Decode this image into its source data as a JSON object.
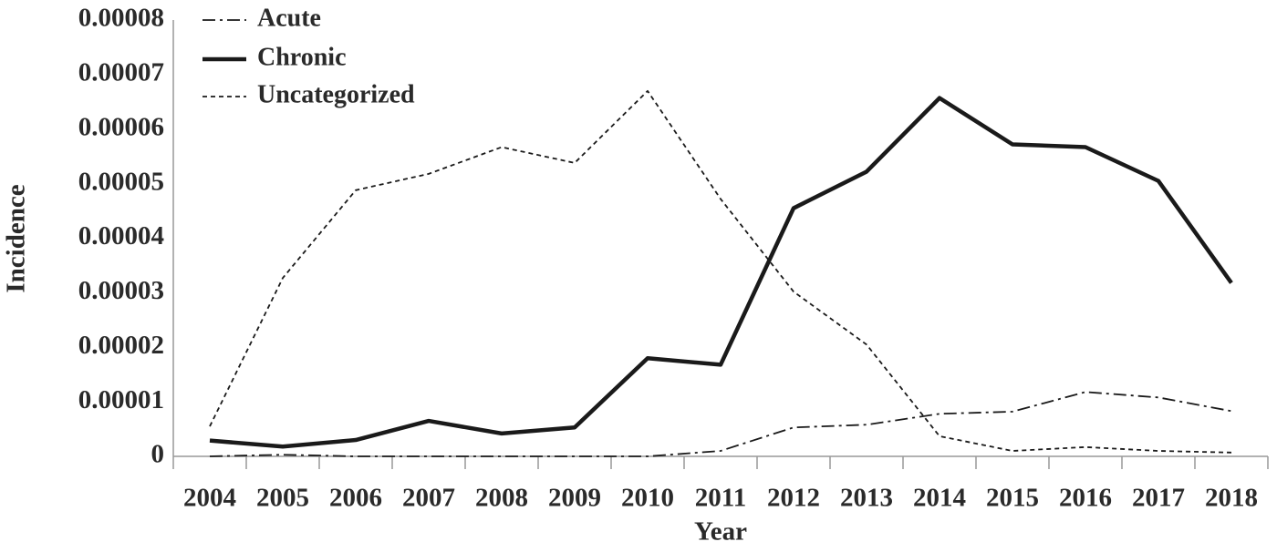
{
  "chart_data": {
    "type": "line",
    "x_label": "Year",
    "y_label": "Incidence",
    "categories": [
      "2004",
      "2005",
      "2006",
      "2007",
      "2008",
      "2009",
      "2010",
      "2011",
      "2012",
      "2013",
      "2014",
      "2015",
      "2016",
      "2017",
      "2018"
    ],
    "ylim": [
      0,
      8e-05
    ],
    "yticks": [
      0,
      1e-05,
      2e-05,
      3e-05,
      4e-05,
      5e-05,
      6e-05,
      7e-05,
      8e-05
    ],
    "legend": "top-left",
    "series": [
      {
        "name": "Acute",
        "color": "#1a1a1a",
        "style": "dash-dot",
        "values": [
          0,
          3e-07,
          0,
          0,
          0,
          0,
          0,
          1e-06,
          5.3e-06,
          5.8e-06,
          7.8e-06,
          8.2e-06,
          1.18e-05,
          1.08e-05,
          8.3e-06
        ]
      },
      {
        "name": "Chronic",
        "color": "#1a1a1a",
        "style": "solid",
        "values": [
          2.9e-06,
          1.8e-06,
          3e-06,
          6.5e-06,
          4.2e-06,
          5.3e-06,
          1.8e-05,
          1.68e-05,
          4.55e-05,
          5.22e-05,
          6.57e-05,
          5.72e-05,
          5.67e-05,
          5.05e-05,
          3.18e-05
        ]
      },
      {
        "name": "Uncategorized",
        "color": "#1a1a1a",
        "style": "dashed",
        "values": [
          5.5e-06,
          3.27e-05,
          4.88e-05,
          5.18e-05,
          5.67e-05,
          5.38e-05,
          6.7e-05,
          4.72e-05,
          3.02e-05,
          2.05e-05,
          3.7e-06,
          1e-06,
          1.7e-06,
          1e-06,
          7e-07
        ]
      }
    ]
  }
}
